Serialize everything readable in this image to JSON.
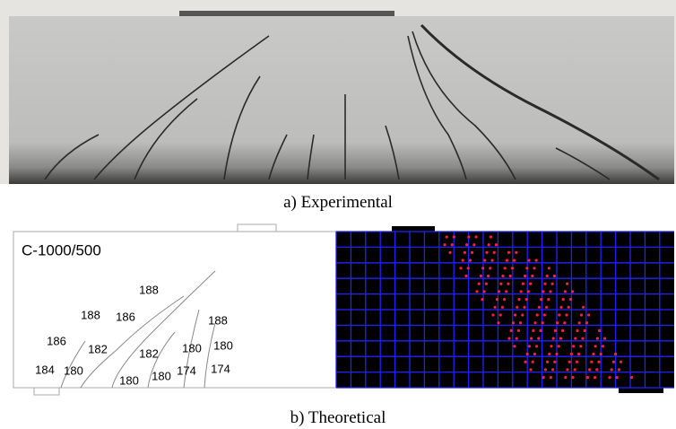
{
  "figure_a": {
    "caption": "a) Experimental"
  },
  "figure_b": {
    "label": "C-1000/500",
    "crack_labels": [
      "188",
      "188",
      "186",
      "188",
      "186",
      "182",
      "182",
      "180",
      "180",
      "184",
      "180",
      "180",
      "180",
      "174",
      "174"
    ],
    "caption": "b) Theoretical"
  }
}
